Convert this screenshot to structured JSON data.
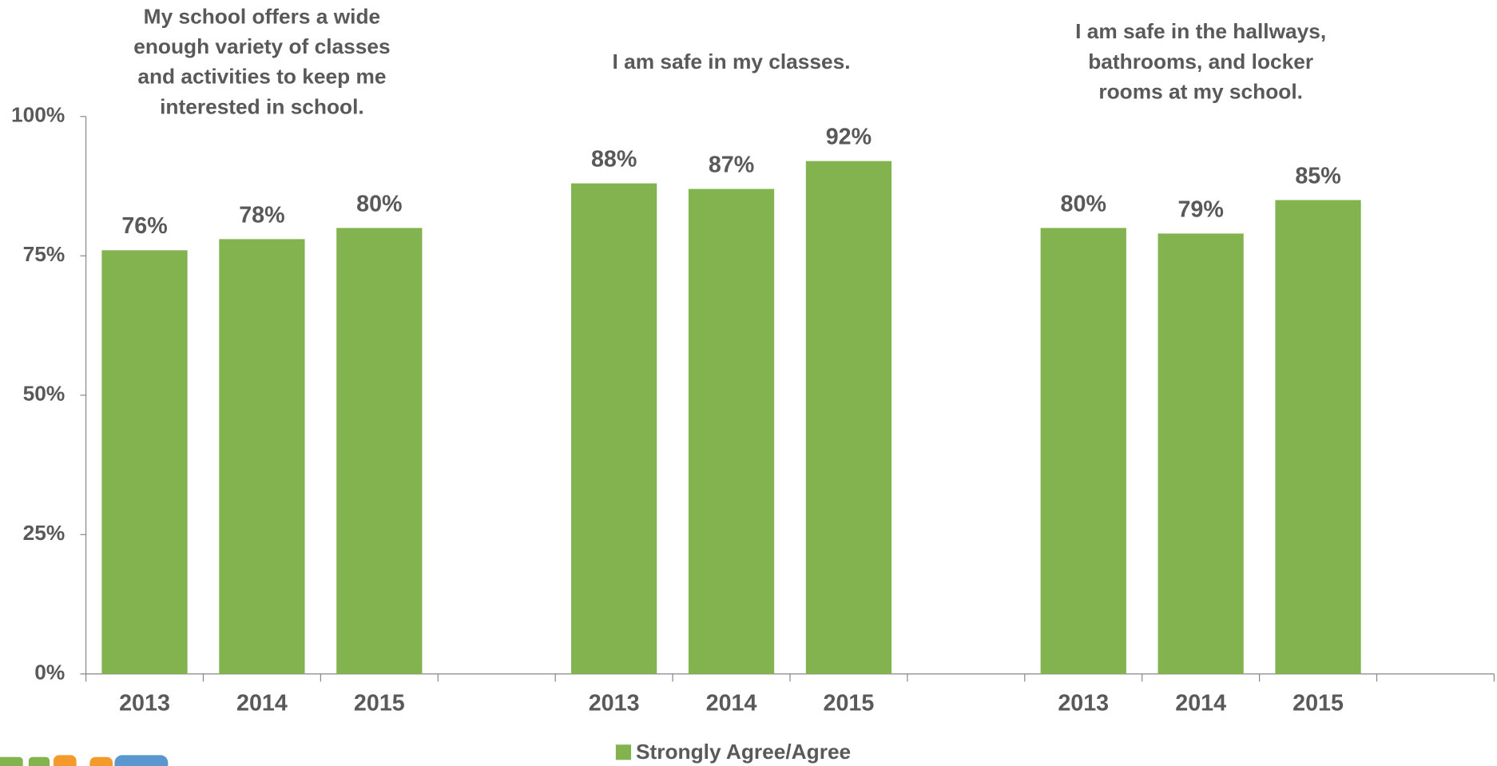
{
  "chart_data": {
    "type": "bar",
    "group_titles": [
      [
        "My school offers a wide",
        "enough variety of classes",
        "and activities to keep me",
        "interested in school."
      ],
      [
        "I am safe in my classes."
      ],
      [
        "I am safe in the hallways,",
        "bathrooms, and locker",
        "rooms at my school."
      ]
    ],
    "categories": [
      "2013",
      "2014",
      "2015",
      null,
      "2013",
      "2014",
      "2015",
      null,
      "2013",
      "2014",
      "2015",
      null
    ],
    "series": [
      {
        "name": "Strongly Agree/Agree",
        "color": "#82b34f",
        "values": [
          76,
          78,
          80,
          null,
          88,
          87,
          92,
          null,
          80,
          79,
          85,
          null
        ],
        "value_labels": [
          "76%",
          "78%",
          "80%",
          null,
          "88%",
          "87%",
          "92%",
          null,
          "80%",
          "79%",
          "85%",
          null
        ]
      }
    ],
    "ylim": [
      0,
      100
    ],
    "yticks": [
      {
        "value": 0,
        "label": "0%"
      },
      {
        "value": 25,
        "label": "25%"
      },
      {
        "value": 50,
        "label": "50%"
      },
      {
        "value": 75,
        "label": "75%"
      },
      {
        "value": 100,
        "label": "100%"
      }
    ],
    "legend": "bottom"
  }
}
